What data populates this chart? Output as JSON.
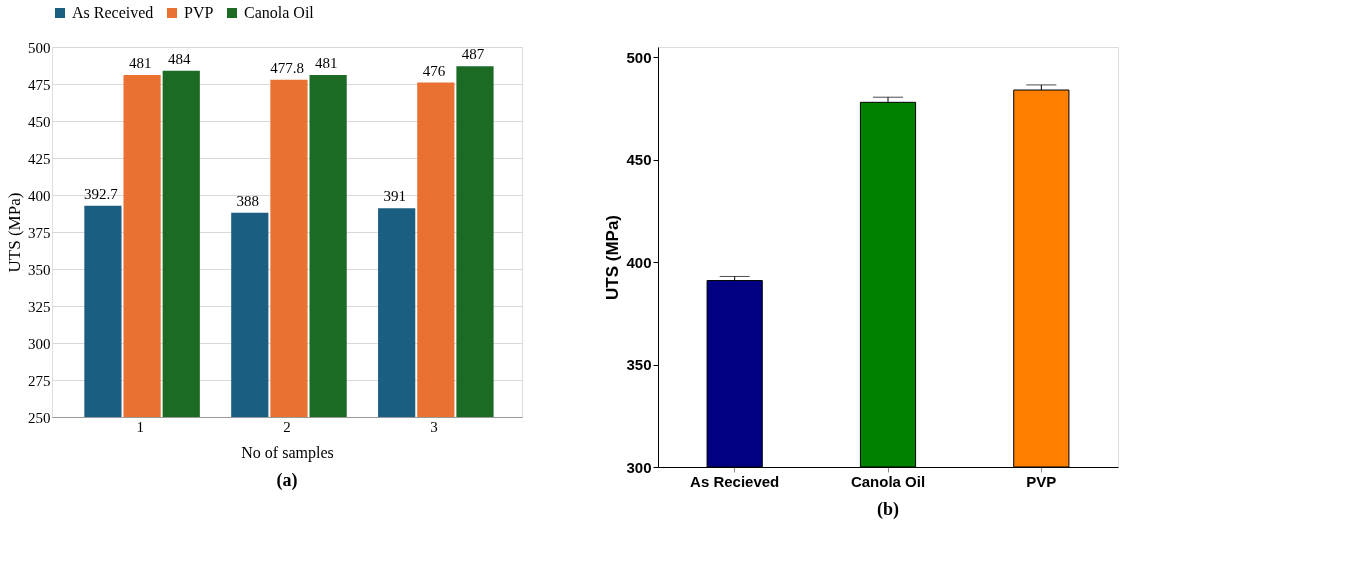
{
  "chart_data": [
    {
      "type": "bar",
      "xlabel": "No of samples",
      "ylabel": "UTS (MPa)",
      "categories": [
        "1",
        "2",
        "3"
      ],
      "series": [
        {
          "name": "As Received",
          "color": "#1a5e82",
          "values": [
            392.7,
            388,
            391
          ]
        },
        {
          "name": "PVP",
          "color": "#e97132",
          "values": [
            481,
            477.8,
            476
          ]
        },
        {
          "name": "Canola Oil",
          "color": "#1b6b24",
          "values": [
            484,
            481,
            487
          ]
        }
      ],
      "ylim": [
        250,
        500
      ],
      "yticks": [
        250,
        275,
        300,
        325,
        350,
        375,
        400,
        425,
        450,
        475,
        500
      ],
      "grid": "y",
      "legend": "top",
      "data_labels": true,
      "annotations": [
        "(a)"
      ]
    },
    {
      "type": "bar",
      "ylabel": "UTS (MPa)",
      "categories": [
        "As Recieved",
        "Canola Oil",
        "PVP"
      ],
      "values": [
        391,
        478,
        484
      ],
      "colors": [
        "#000080",
        "#008000",
        "#ff8000"
      ],
      "errors": [
        2,
        2.5,
        2.5
      ],
      "ylim": [
        300,
        505
      ],
      "yticks": [
        300,
        350,
        400,
        450,
        500
      ],
      "grid": false,
      "annotations": [
        "(b)"
      ]
    }
  ]
}
